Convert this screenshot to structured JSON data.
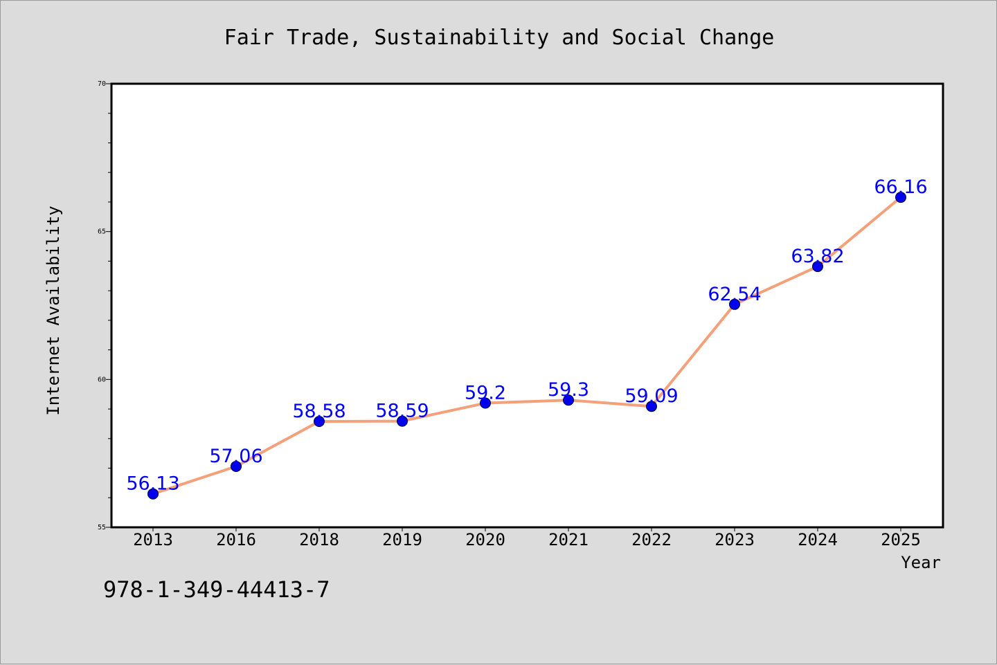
{
  "chart_data": {
    "type": "line",
    "title": "Fair Trade, Sustainability and Social Change",
    "xlabel": "Year",
    "ylabel": "Internet Availability",
    "categories": [
      "2013",
      "2016",
      "2018",
      "2019",
      "2020",
      "2021",
      "2022",
      "2023",
      "2024",
      "2025"
    ],
    "series": [
      {
        "values": [
          56.13,
          57.06,
          58.58,
          58.59,
          59.2,
          59.3,
          59.09,
          62.54,
          63.82,
          66.16
        ],
        "data_labels": [
          "56.13",
          "57.06",
          "58.58",
          "58.59",
          "59.2",
          "59.3",
          "59.09",
          "62.54",
          "63.82",
          "66.16"
        ]
      }
    ],
    "ylim": [
      55,
      70
    ],
    "yticks": [
      55,
      60,
      65,
      70
    ],
    "ytick_labels": [
      "55",
      "60",
      "65",
      "70"
    ],
    "grid": false,
    "colors": {
      "line": "#f4a07a",
      "marker": "#0000ee",
      "label": "#0000ff",
      "background": "#dcdcdc",
      "plot_area": "#ffffff"
    }
  },
  "footer": {
    "isbn": "978-1-349-44413-7"
  }
}
